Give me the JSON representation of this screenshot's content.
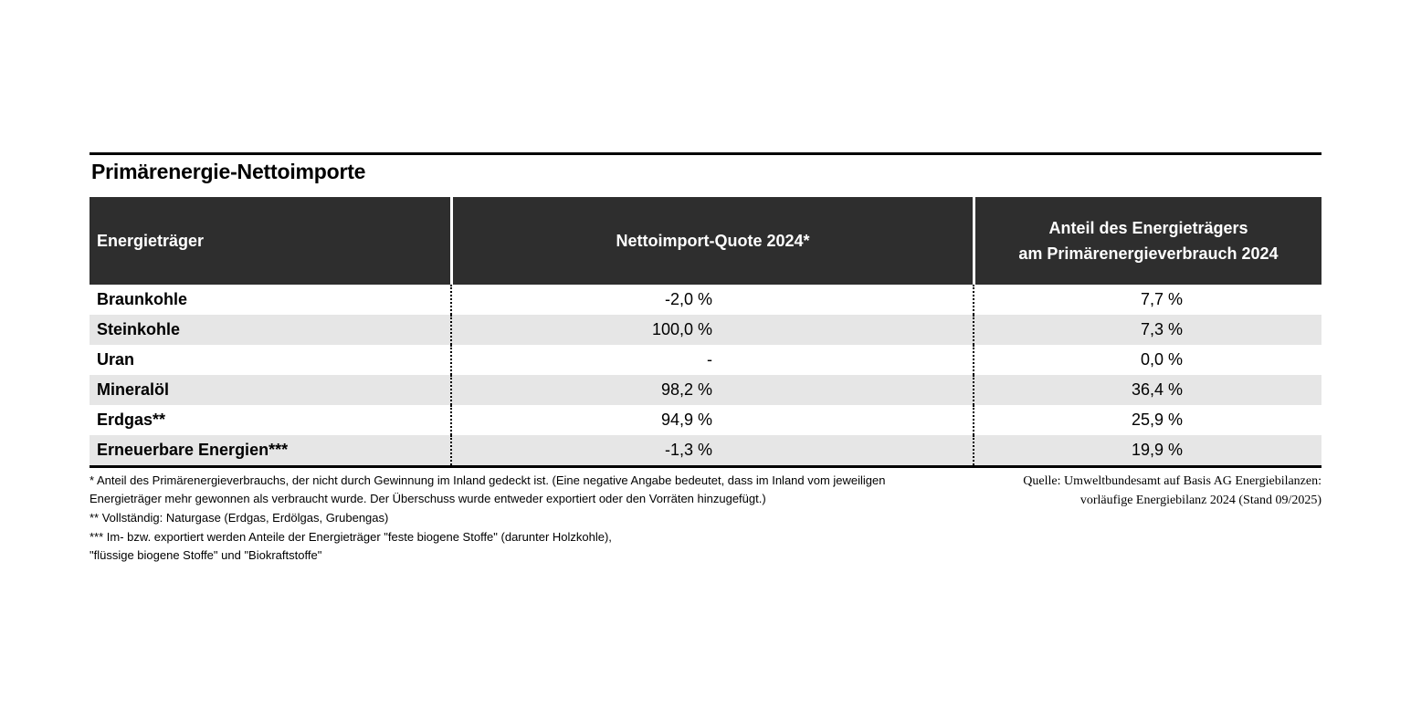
{
  "title": "Primärenergie-Nettoimporte",
  "colors": {
    "header_bg": "#2e2e2e",
    "header_text": "#ffffff",
    "zebra_row_bg": "#e6e6e6",
    "rule": "#000000",
    "page_bg": "#ffffff"
  },
  "table": {
    "header": {
      "col1": "Energieträger",
      "col2": "Nettoimport-Quote 2024*",
      "col3_line1": "Anteil des Energieträgers",
      "col3_line2": "am Primärenergieverbrauch 2024"
    },
    "rows": [
      {
        "label": "Braunkohle",
        "quote": "-2,0 %",
        "share": "7,7 %"
      },
      {
        "label": "Steinkohle",
        "quote": "100,0 %",
        "share": "7,3 %"
      },
      {
        "label": "Uran",
        "quote": "-",
        "share": "0,0 %"
      },
      {
        "label": "Mineralöl",
        "quote": "98,2 %",
        "share": "36,4 %"
      },
      {
        "label": "Erdgas**",
        "quote": "94,9 %",
        "share": "25,9 %"
      },
      {
        "label": "Erneuerbare Energien***",
        "quote": "-1,3 %",
        "share": "19,9 %"
      }
    ]
  },
  "footnotes": [
    "* Anteil des Primärenergieverbrauchs, der nicht durch Gewinnung im Inland gedeckt ist. (Eine negative Angabe bedeutet, dass im Inland vom jeweiligen",
    "Energieträger mehr gewonnen als verbraucht wurde. Der Überschuss wurde entweder exportiert oder den Vorräten hinzugefügt.)",
    "**  Vollständig: Naturgase (Erdgas, Erdölgas, Grubengas)",
    "*** Im- bzw. exportiert werden Anteile der Energieträger \"feste biogene Stoffe\" (darunter Holzkohle),",
    "\"flüssige biogene Stoffe\" und \"Biokraftstoffe\""
  ],
  "source": {
    "line1": "Quelle: Umweltbundesamt auf Basis AG Energiebilanzen:",
    "line2": "vorläufige Energiebilanz 2024 (Stand 09/2025)"
  },
  "chart_data": {
    "type": "table",
    "title": "Primärenergie-Nettoimporte",
    "columns": [
      "Energieträger",
      "Nettoimport-Quote 2024*",
      "Anteil des Energieträgers am Primärenergieverbrauch 2024"
    ],
    "rows": [
      [
        "Braunkohle",
        "-2,0 %",
        "7,7 %"
      ],
      [
        "Steinkohle",
        "100,0 %",
        "7,3 %"
      ],
      [
        "Uran",
        "-",
        "0,0 %"
      ],
      [
        "Mineralöl",
        "98,2 %",
        "36,4 %"
      ],
      [
        "Erdgas**",
        "94,9 %",
        "25,9 %"
      ],
      [
        "Erneuerbare Energien***",
        "-1,3 %",
        "19,9 %"
      ]
    ],
    "numeric": {
      "categories": [
        "Braunkohle",
        "Steinkohle",
        "Uran",
        "Mineralöl",
        "Erdgas",
        "Erneuerbare Energien"
      ],
      "nettoimport_quote_2024_percent": [
        -2.0,
        100.0,
        null,
        98.2,
        94.9,
        -1.3
      ],
      "anteil_am_primaerenergieverbrauch_2024_percent": [
        7.7,
        7.3,
        0.0,
        36.4,
        25.9,
        19.9
      ]
    }
  }
}
